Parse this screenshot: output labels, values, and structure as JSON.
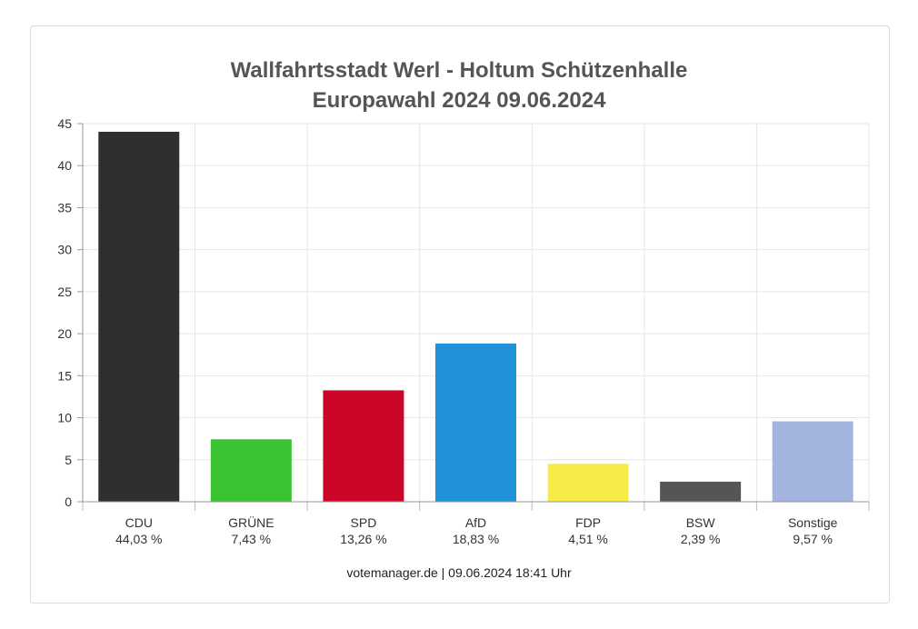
{
  "chart_data": {
    "type": "bar",
    "title": "Wallfahrtsstadt Werl - Holtum Schützenhalle",
    "subtitle": "Europawahl 2024 09.06.2024",
    "categories": [
      "CDU",
      "GRÜNE",
      "SPD",
      "AfD",
      "FDP",
      "BSW",
      "Sonstige"
    ],
    "value_labels": [
      "44,03 %",
      "7,43 %",
      "13,26 %",
      "18,83 %",
      "4,51 %",
      "2,39 %",
      "9,57 %"
    ],
    "values": [
      44.03,
      7.43,
      13.26,
      18.83,
      4.51,
      2.39,
      9.57
    ],
    "colors": [
      "#2f2f2f",
      "#3ac332",
      "#cc0629",
      "#2192d9",
      "#f7eb4a",
      "#555555",
      "#a3b4de"
    ],
    "y_ticks": [
      0,
      5,
      10,
      15,
      20,
      25,
      30,
      35,
      40,
      45
    ],
    "ylim": [
      0,
      45
    ],
    "grid": true,
    "xlabel": "",
    "ylabel": ""
  },
  "footer": "votemanager.de | 09.06.2024 18:41 Uhr"
}
